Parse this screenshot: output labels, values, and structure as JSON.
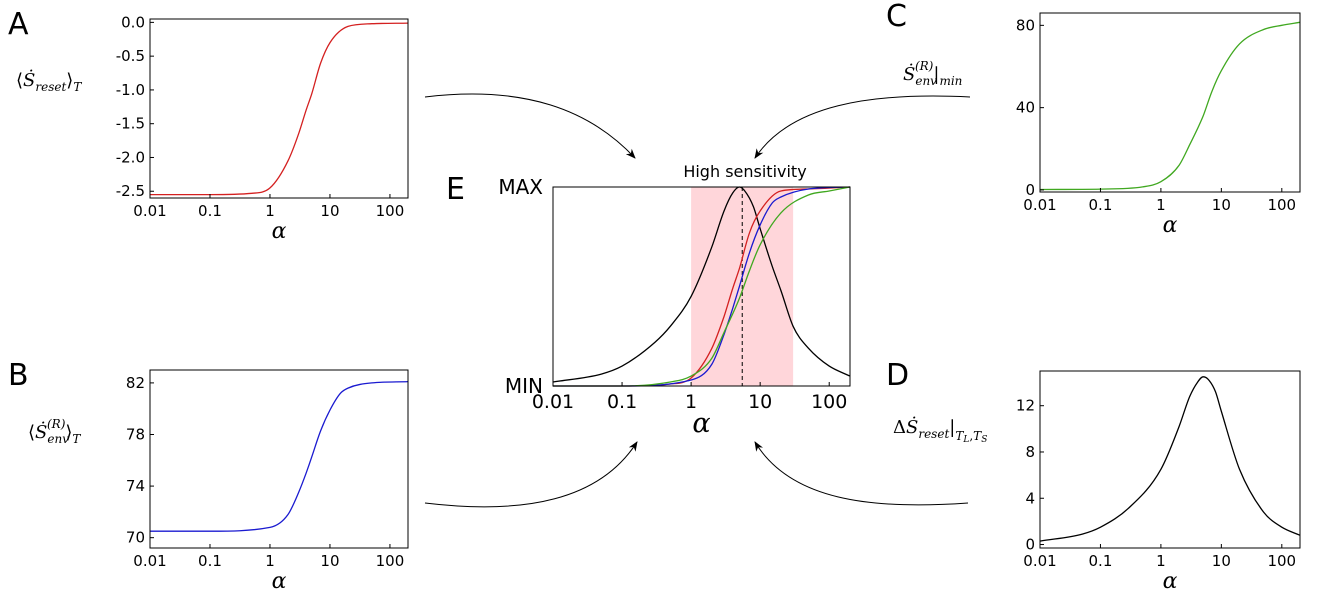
{
  "colors": {
    "red": "#d42020",
    "blue": "#1a1ad0",
    "green": "#40a820",
    "black": "#000000",
    "highlight": "#ffd6da"
  },
  "chart_data": [
    {
      "id": "A",
      "panel_letter": "A",
      "type": "line",
      "x_scale": "log",
      "xlim": [
        0.01,
        200
      ],
      "ylim": [
        -2.6,
        0.05
      ],
      "xticks": [
        "0.01",
        "0.1",
        "1",
        "10",
        "100"
      ],
      "yticks": [
        "0.0",
        "-0.5",
        "-1.0",
        "-1.5",
        "-2.0",
        "-2.5"
      ],
      "xlabel": "α",
      "ylabel": {
        "main": "⟨",
        "dot_symbol": "Ṡ",
        "sub": "reset",
        "close": "⟩",
        "subscript": "T"
      },
      "grid": false,
      "series": [
        {
          "color": "red",
          "x": [
            0.01,
            0.1,
            0.5,
            1,
            2,
            3,
            4,
            5,
            7,
            10,
            20,
            50,
            200
          ],
          "y": [
            -2.55,
            -2.55,
            -2.53,
            -2.45,
            -2.05,
            -1.65,
            -1.3,
            -1.05,
            -0.6,
            -0.3,
            -0.06,
            -0.02,
            -0.01
          ]
        }
      ]
    },
    {
      "id": "B",
      "panel_letter": "B",
      "type": "line",
      "x_scale": "log",
      "xlim": [
        0.01,
        200
      ],
      "ylim": [
        69.2,
        83
      ],
      "xticks": [
        "0.01",
        "0.1",
        "1",
        "10",
        "100"
      ],
      "yticks": [
        "82",
        "78",
        "74",
        "70"
      ],
      "xlabel": "α",
      "ylabel": {
        "main": "⟨",
        "dot_symbol": "Ṡ",
        "sub": "env",
        "sup": "(R)",
        "close": "⟩",
        "subscript": "T"
      },
      "grid": false,
      "series": [
        {
          "color": "blue",
          "x": [
            0.01,
            0.1,
            1,
            2,
            3,
            4,
            5,
            7,
            10,
            15,
            20,
            50,
            200
          ],
          "y": [
            70.5,
            70.5,
            70.8,
            71.8,
            73.5,
            75.0,
            76.3,
            78.3,
            79.9,
            81.2,
            81.6,
            82.0,
            82.1
          ]
        }
      ]
    },
    {
      "id": "C",
      "panel_letter": "C",
      "type": "line",
      "x_scale": "log",
      "xlim": [
        0.01,
        200
      ],
      "ylim": [
        -1,
        86
      ],
      "xticks": [
        "0.01",
        "0.1",
        "1",
        "10",
        "100"
      ],
      "yticks": [
        "80",
        "40",
        "0"
      ],
      "xlabel": "α",
      "ylabel": {
        "dot_symbol": "Ṡ",
        "sub": "env",
        "sup": "(R)",
        "bar": "|",
        "subscript": "min"
      },
      "grid": false,
      "series": [
        {
          "color": "green",
          "x": [
            0.01,
            0.1,
            0.5,
            1,
            2,
            3,
            5,
            7,
            10,
            20,
            50,
            100,
            200
          ],
          "y": [
            0.2,
            0.4,
            1.5,
            4,
            12,
            22,
            36,
            48,
            58,
            71,
            78,
            80,
            81.5
          ]
        }
      ]
    },
    {
      "id": "D",
      "panel_letter": "D",
      "type": "line",
      "x_scale": "log",
      "xlim": [
        0.01,
        200
      ],
      "ylim": [
        -0.3,
        15
      ],
      "xticks": [
        "0.01",
        "0.1",
        "1",
        "10",
        "100"
      ],
      "yticks": [
        "12",
        "8",
        "4",
        "0"
      ],
      "xlabel": "α",
      "ylabel": {
        "main": "Δ",
        "dot_symbol": "Ṡ",
        "sub": "reset",
        "bar": "|",
        "subscript": "T",
        "subscript_sub": "L",
        "subscript2": "T",
        "subscript2_sub": "S"
      },
      "grid": false,
      "series": [
        {
          "color": "black",
          "x": [
            0.01,
            0.05,
            0.1,
            0.3,
            1,
            2,
            3,
            4,
            5,
            6,
            8,
            10,
            20,
            50,
            100,
            200
          ],
          "y": [
            0.3,
            0.9,
            1.5,
            3.2,
            6.5,
            10.2,
            12.8,
            14.0,
            14.5,
            14.3,
            13.2,
            11.5,
            6.5,
            2.8,
            1.5,
            0.8
          ]
        }
      ]
    },
    {
      "id": "E",
      "panel_letter": "E",
      "type": "line",
      "x_scale": "log",
      "xlim": [
        0.01,
        200
      ],
      "ylim": [
        0,
        1
      ],
      "xticks": [
        "0.01",
        "0.1",
        "1",
        "10",
        "100"
      ],
      "yticks": [
        "MAX",
        "MIN"
      ],
      "xlabel": "α",
      "grid": false,
      "annotation": "High sensitivity",
      "shaded_region_x": [
        1,
        30
      ],
      "dashed_line_x": 5.5,
      "series": [
        {
          "color": "black",
          "x": [
            0.01,
            0.05,
            0.1,
            0.3,
            0.5,
            1,
            2,
            3,
            4,
            5,
            6,
            8,
            10,
            15,
            20,
            30,
            50,
            100,
            200
          ],
          "y": [
            0.02,
            0.06,
            0.1,
            0.22,
            0.3,
            0.45,
            0.7,
            0.88,
            0.97,
            1.0,
            0.98,
            0.9,
            0.79,
            0.6,
            0.48,
            0.3,
            0.19,
            0.1,
            0.05
          ]
        },
        {
          "color": "red",
          "x": [
            0.01,
            0.1,
            0.5,
            1,
            2,
            3,
            4,
            5,
            7,
            10,
            20,
            50,
            200
          ],
          "y": [
            0.0,
            0.0,
            0.01,
            0.04,
            0.19,
            0.35,
            0.49,
            0.59,
            0.77,
            0.88,
            0.98,
            0.99,
            1.0
          ]
        },
        {
          "color": "blue",
          "x": [
            0.01,
            0.1,
            1,
            2,
            3,
            4,
            5,
            7,
            10,
            15,
            20,
            50,
            200
          ],
          "y": [
            0.0,
            0.0,
            0.03,
            0.11,
            0.26,
            0.39,
            0.5,
            0.67,
            0.81,
            0.92,
            0.95,
            0.99,
            1.0
          ]
        },
        {
          "color": "green",
          "x": [
            0.01,
            0.1,
            0.5,
            1,
            2,
            3,
            5,
            7,
            10,
            20,
            50,
            100,
            200
          ],
          "y": [
            0.0,
            0.0,
            0.02,
            0.05,
            0.14,
            0.27,
            0.44,
            0.58,
            0.71,
            0.87,
            0.96,
            0.98,
            1.0
          ]
        }
      ]
    }
  ]
}
